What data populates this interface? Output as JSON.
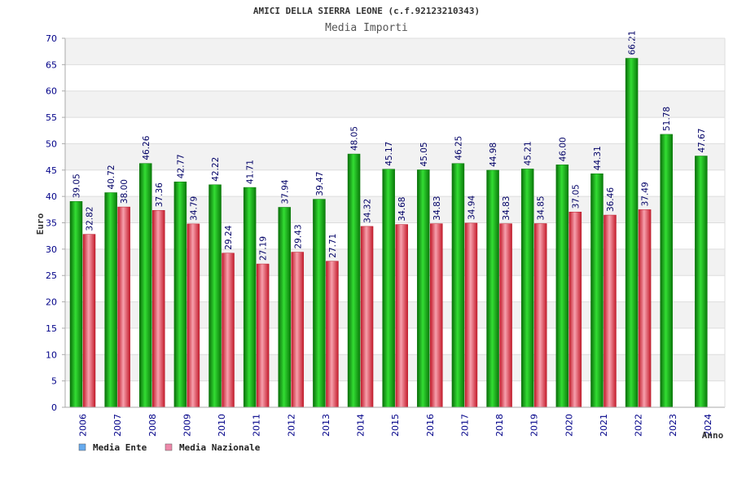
{
  "chart_data": {
    "type": "bar",
    "title": "AMICI DELLA SIERRA LEONE (c.f.92123210343)",
    "subtitle": "Media Importi",
    "xlabel": "Anno",
    "ylabel": "Euro",
    "ylim": [
      0,
      70
    ],
    "yticks": [
      0,
      5,
      10,
      15,
      20,
      25,
      30,
      35,
      40,
      45,
      50,
      55,
      60,
      65,
      70
    ],
    "grid": true,
    "legend_position": "bottom-left",
    "categories": [
      "2006",
      "2007",
      "2008",
      "2009",
      "2010",
      "2011",
      "2012",
      "2013",
      "2014",
      "2015",
      "2016",
      "2017",
      "2018",
      "2019",
      "2020",
      "2021",
      "2022",
      "2023",
      "2024"
    ],
    "series": [
      {
        "name": "Media Ente",
        "color": "#22bb22",
        "legend_color": "#66aaee",
        "values": [
          39.05,
          40.72,
          46.26,
          42.77,
          42.22,
          41.71,
          37.94,
          39.47,
          48.05,
          45.17,
          45.05,
          46.25,
          44.98,
          45.21,
          46.0,
          44.31,
          66.21,
          51.78,
          47.67
        ],
        "labels": [
          "39.05",
          "40.72",
          "46.26",
          "42.77",
          "42.22",
          "41.71",
          "37.94",
          "39.47",
          "48.05",
          "45.17",
          "45.05",
          "46.25",
          "44.98",
          "45.21",
          "46.00",
          "44.31",
          "66.21",
          "51.78",
          "47.67"
        ]
      },
      {
        "name": "Media Nazionale",
        "color": "#ee4455",
        "legend_color": "#ee88aa",
        "values": [
          32.82,
          38.0,
          37.36,
          34.79,
          29.24,
          27.19,
          29.43,
          27.71,
          34.32,
          34.68,
          34.83,
          34.94,
          34.83,
          34.85,
          37.05,
          36.46,
          37.49,
          null,
          null
        ],
        "labels": [
          "32.82",
          "38.00",
          "37.36",
          "34.79",
          "29.24",
          "27.19",
          "29.43",
          "27.71",
          "34.32",
          "34.68",
          "34.83",
          "34.94",
          "34.83",
          "34.85",
          "37.05",
          "36.46",
          "37.49",
          null,
          null
        ]
      }
    ]
  }
}
